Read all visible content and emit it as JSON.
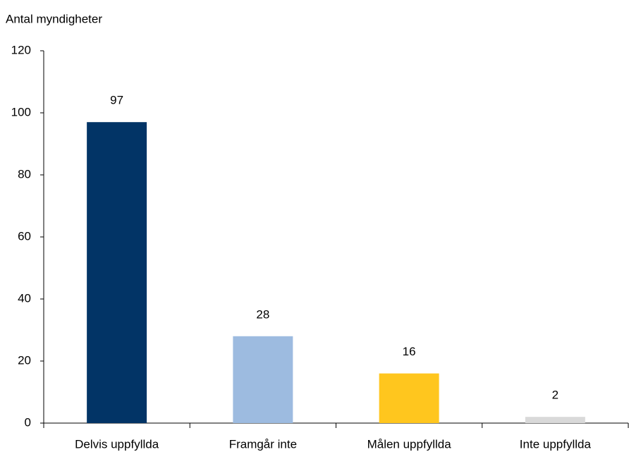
{
  "chart_data": {
    "type": "bar",
    "y_axis_label": "Antal myndigheter",
    "categories": [
      "Delvis uppfyllda",
      "Framgår inte",
      "Målen uppfyllda",
      "Inte uppfyllda"
    ],
    "values": [
      97,
      28,
      16,
      2
    ],
    "colors": [
      "#023466",
      "#9dbbe0",
      "#ffc61e",
      "#d9d9d9"
    ],
    "ylim": [
      0,
      120
    ],
    "yticks": [
      0,
      20,
      40,
      60,
      80,
      100,
      120
    ],
    "grid": false
  }
}
